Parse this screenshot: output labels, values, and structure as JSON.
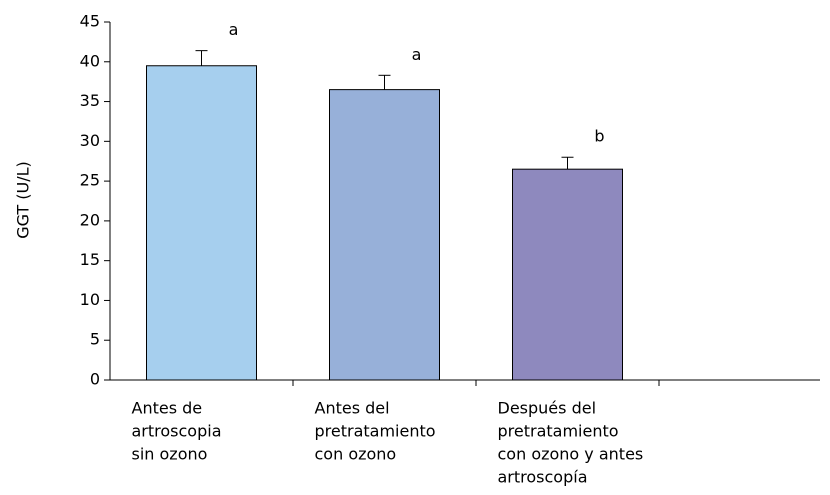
{
  "chart_data": {
    "type": "bar",
    "y_label": "GGT (U/L)",
    "categories": [
      [
        "Antes de",
        "artroscopia",
        "sin ozono"
      ],
      [
        "Antes del",
        "pretratamiento",
        "con ozono"
      ],
      [
        "Después del",
        "pretratamiento",
        "con ozono y antes",
        " artroscopía"
      ]
    ],
    "values": [
      39.5,
      36.5,
      26.5
    ],
    "errors": [
      1.9,
      1.8,
      1.5
    ],
    "annotations": [
      "a",
      "a",
      "b"
    ],
    "colors": [
      "#a6cfee",
      "#97b0d9",
      "#8e89be"
    ],
    "ylim": [
      0,
      45
    ],
    "yticks": [
      0,
      5,
      10,
      15,
      20,
      25,
      30,
      35,
      40,
      45
    ]
  }
}
